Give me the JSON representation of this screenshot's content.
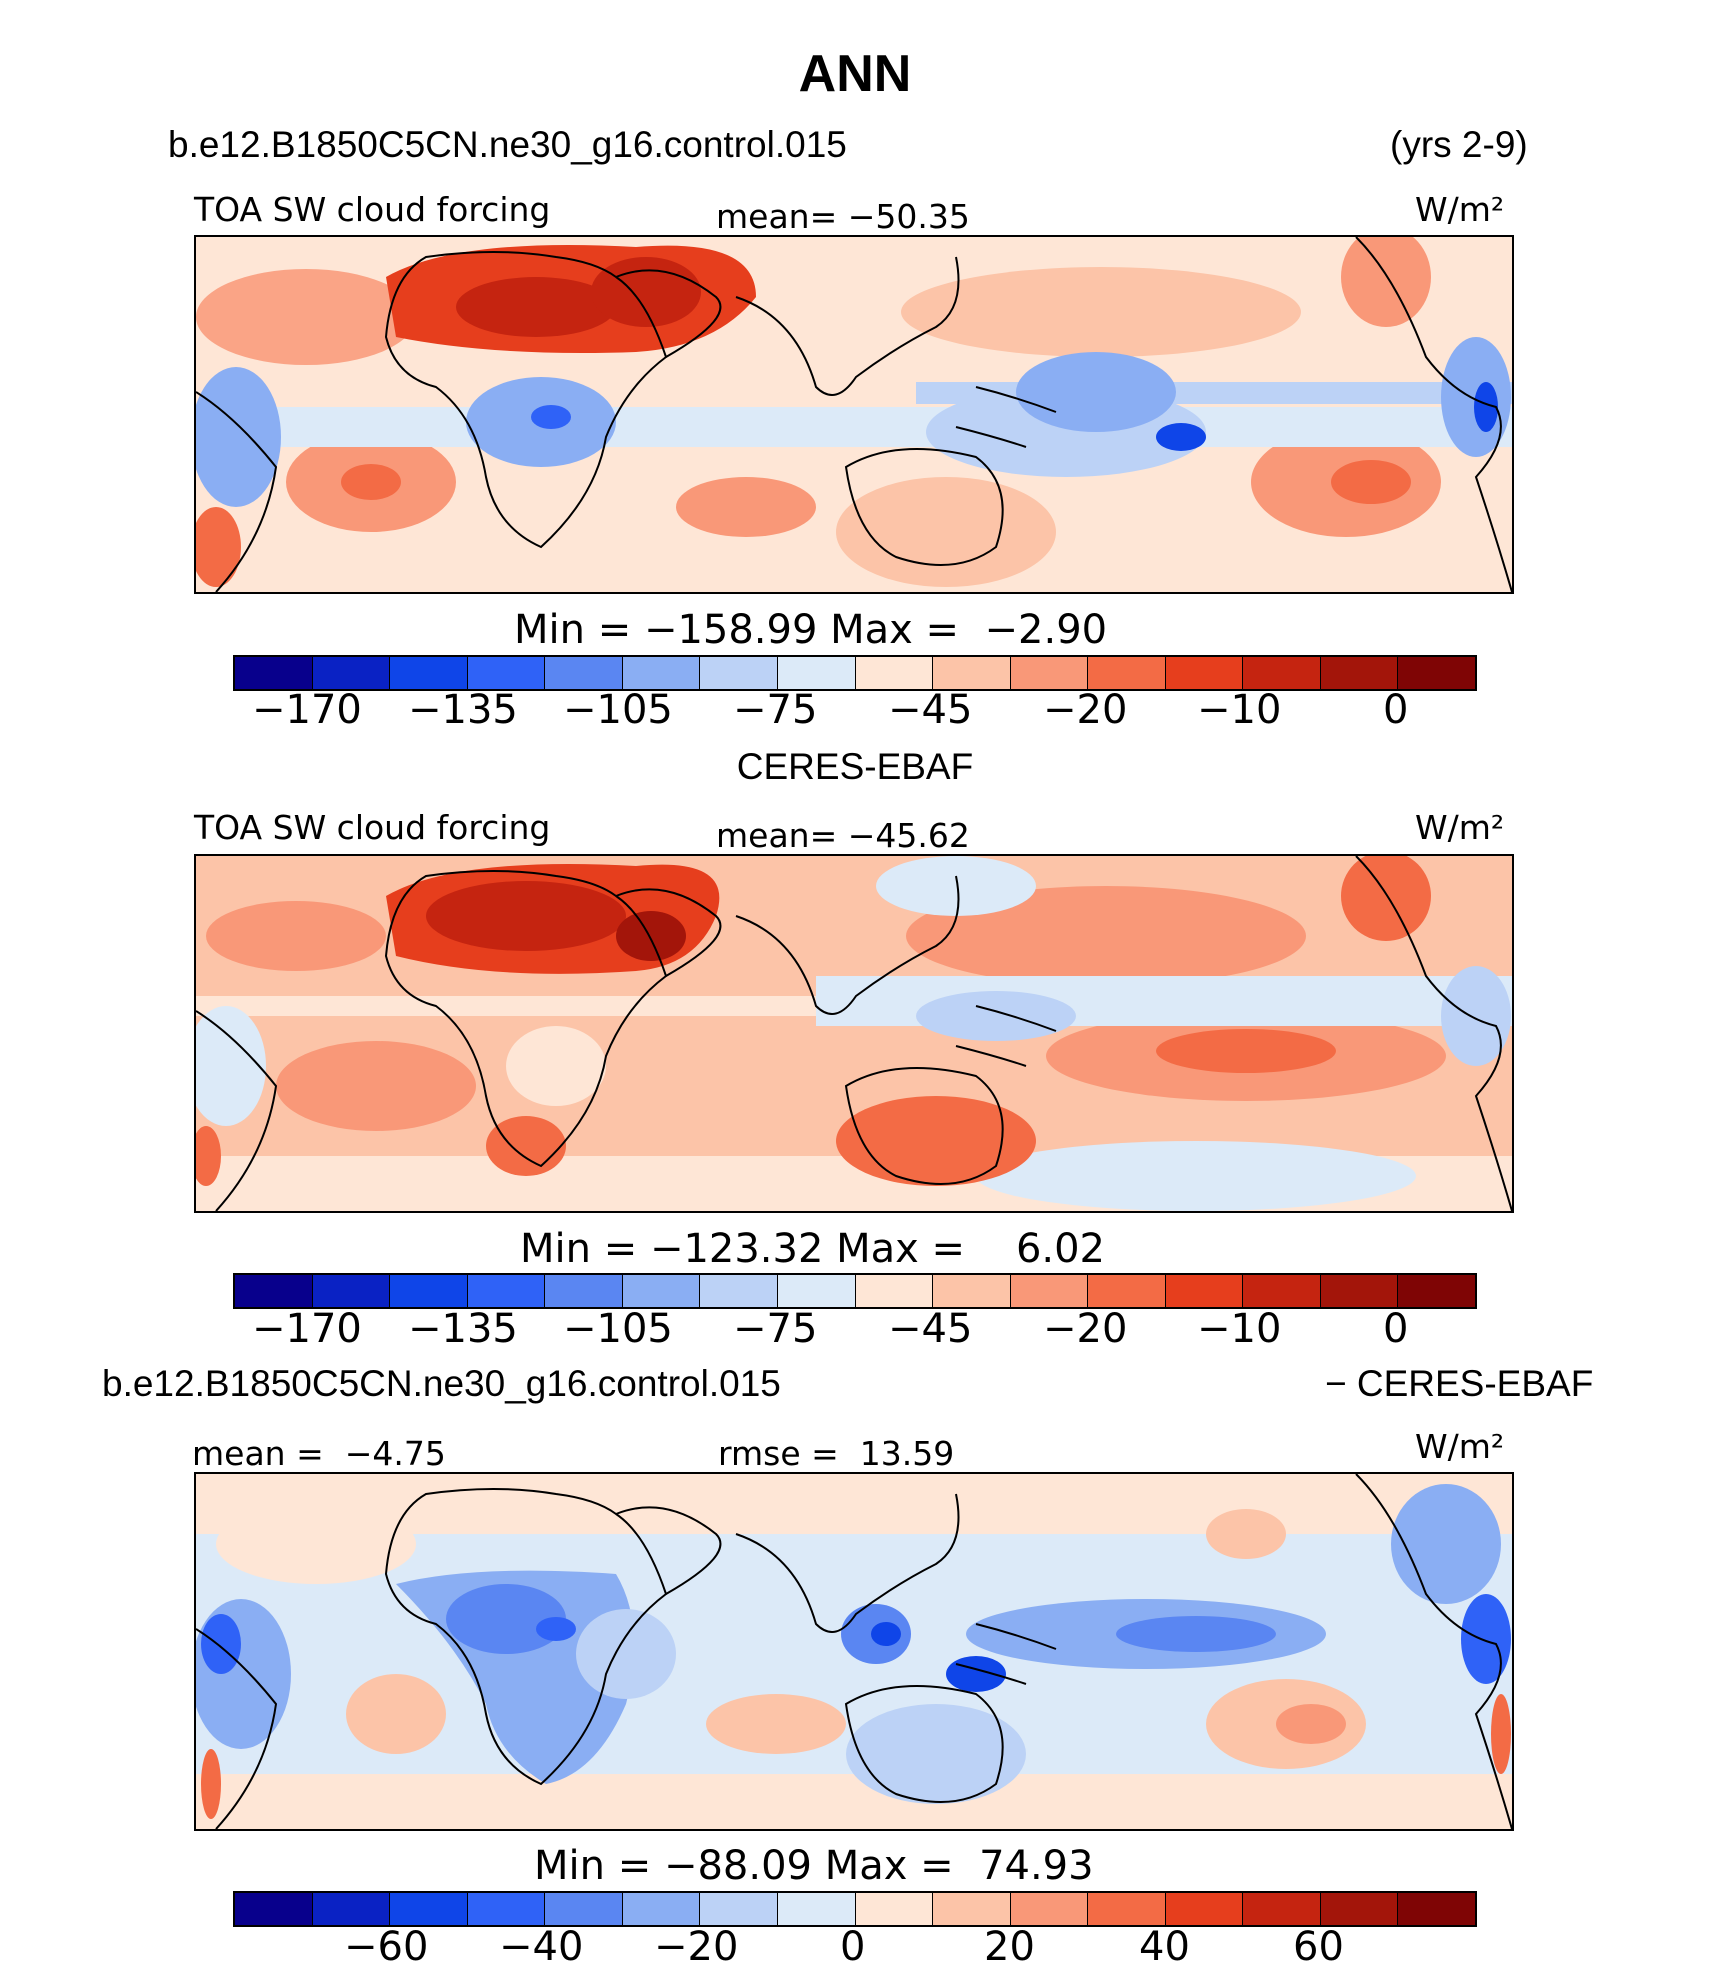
{
  "title": "ANN",
  "case_name": "b.e12.B1850C5CN.ne30_g16.control.015",
  "years": "(yrs 2-9)",
  "obs_name": "CERES-EBAF",
  "diff_case": "b.e12.B1850C5CN.ne30_g16.control.015",
  "diff_suffix": "- CERES-EBAF",
  "colors": {
    "scale": [
      "#08008c",
      "#0a22c4",
      "#0f45e8",
      "#2f62f7",
      "#5a86f2",
      "#8aaef3",
      "#bcd2f6",
      "#dceaf8",
      "#fee6d6",
      "#fcc4a8",
      "#f99878",
      "#f36b45",
      "#e63e1d",
      "#c52410",
      "#a3150a",
      "#7f0505"
    ]
  },
  "chart_data": [
    {
      "type": "heatmap",
      "panel": "model",
      "variable": "TOA SW cloud forcing",
      "units": "W/m²",
      "mean_label": "mean=",
      "mean": "-50.35",
      "min_label": "Min",
      "max_label": "Max",
      "min": "-158.99",
      "max": "-2.90",
      "colorbar_ticks": [
        "-170",
        "-135",
        "-105",
        "-75",
        "-45",
        "-20",
        "-10",
        "0"
      ]
    },
    {
      "type": "heatmap",
      "panel": "obs",
      "variable": "TOA SW cloud forcing",
      "units": "W/m²",
      "mean_label": "mean=",
      "mean": "-45.62",
      "min_label": "Min",
      "max_label": "Max",
      "min": "-123.32",
      "max": "6.02",
      "colorbar_ticks": [
        "-170",
        "-135",
        "-105",
        "-75",
        "-45",
        "-20",
        "-10",
        "0"
      ]
    },
    {
      "type": "heatmap",
      "panel": "difference",
      "units": "W/m²",
      "mean_label": "mean =",
      "mean": "-4.75",
      "rmse_label": "rmse =",
      "rmse": "13.59",
      "min_label": "Min",
      "max_label": "Max",
      "min": "-88.09",
      "max": "74.93",
      "colorbar_ticks": [
        "-60",
        "-40",
        "-20",
        "0",
        "20",
        "40",
        "60"
      ]
    }
  ]
}
